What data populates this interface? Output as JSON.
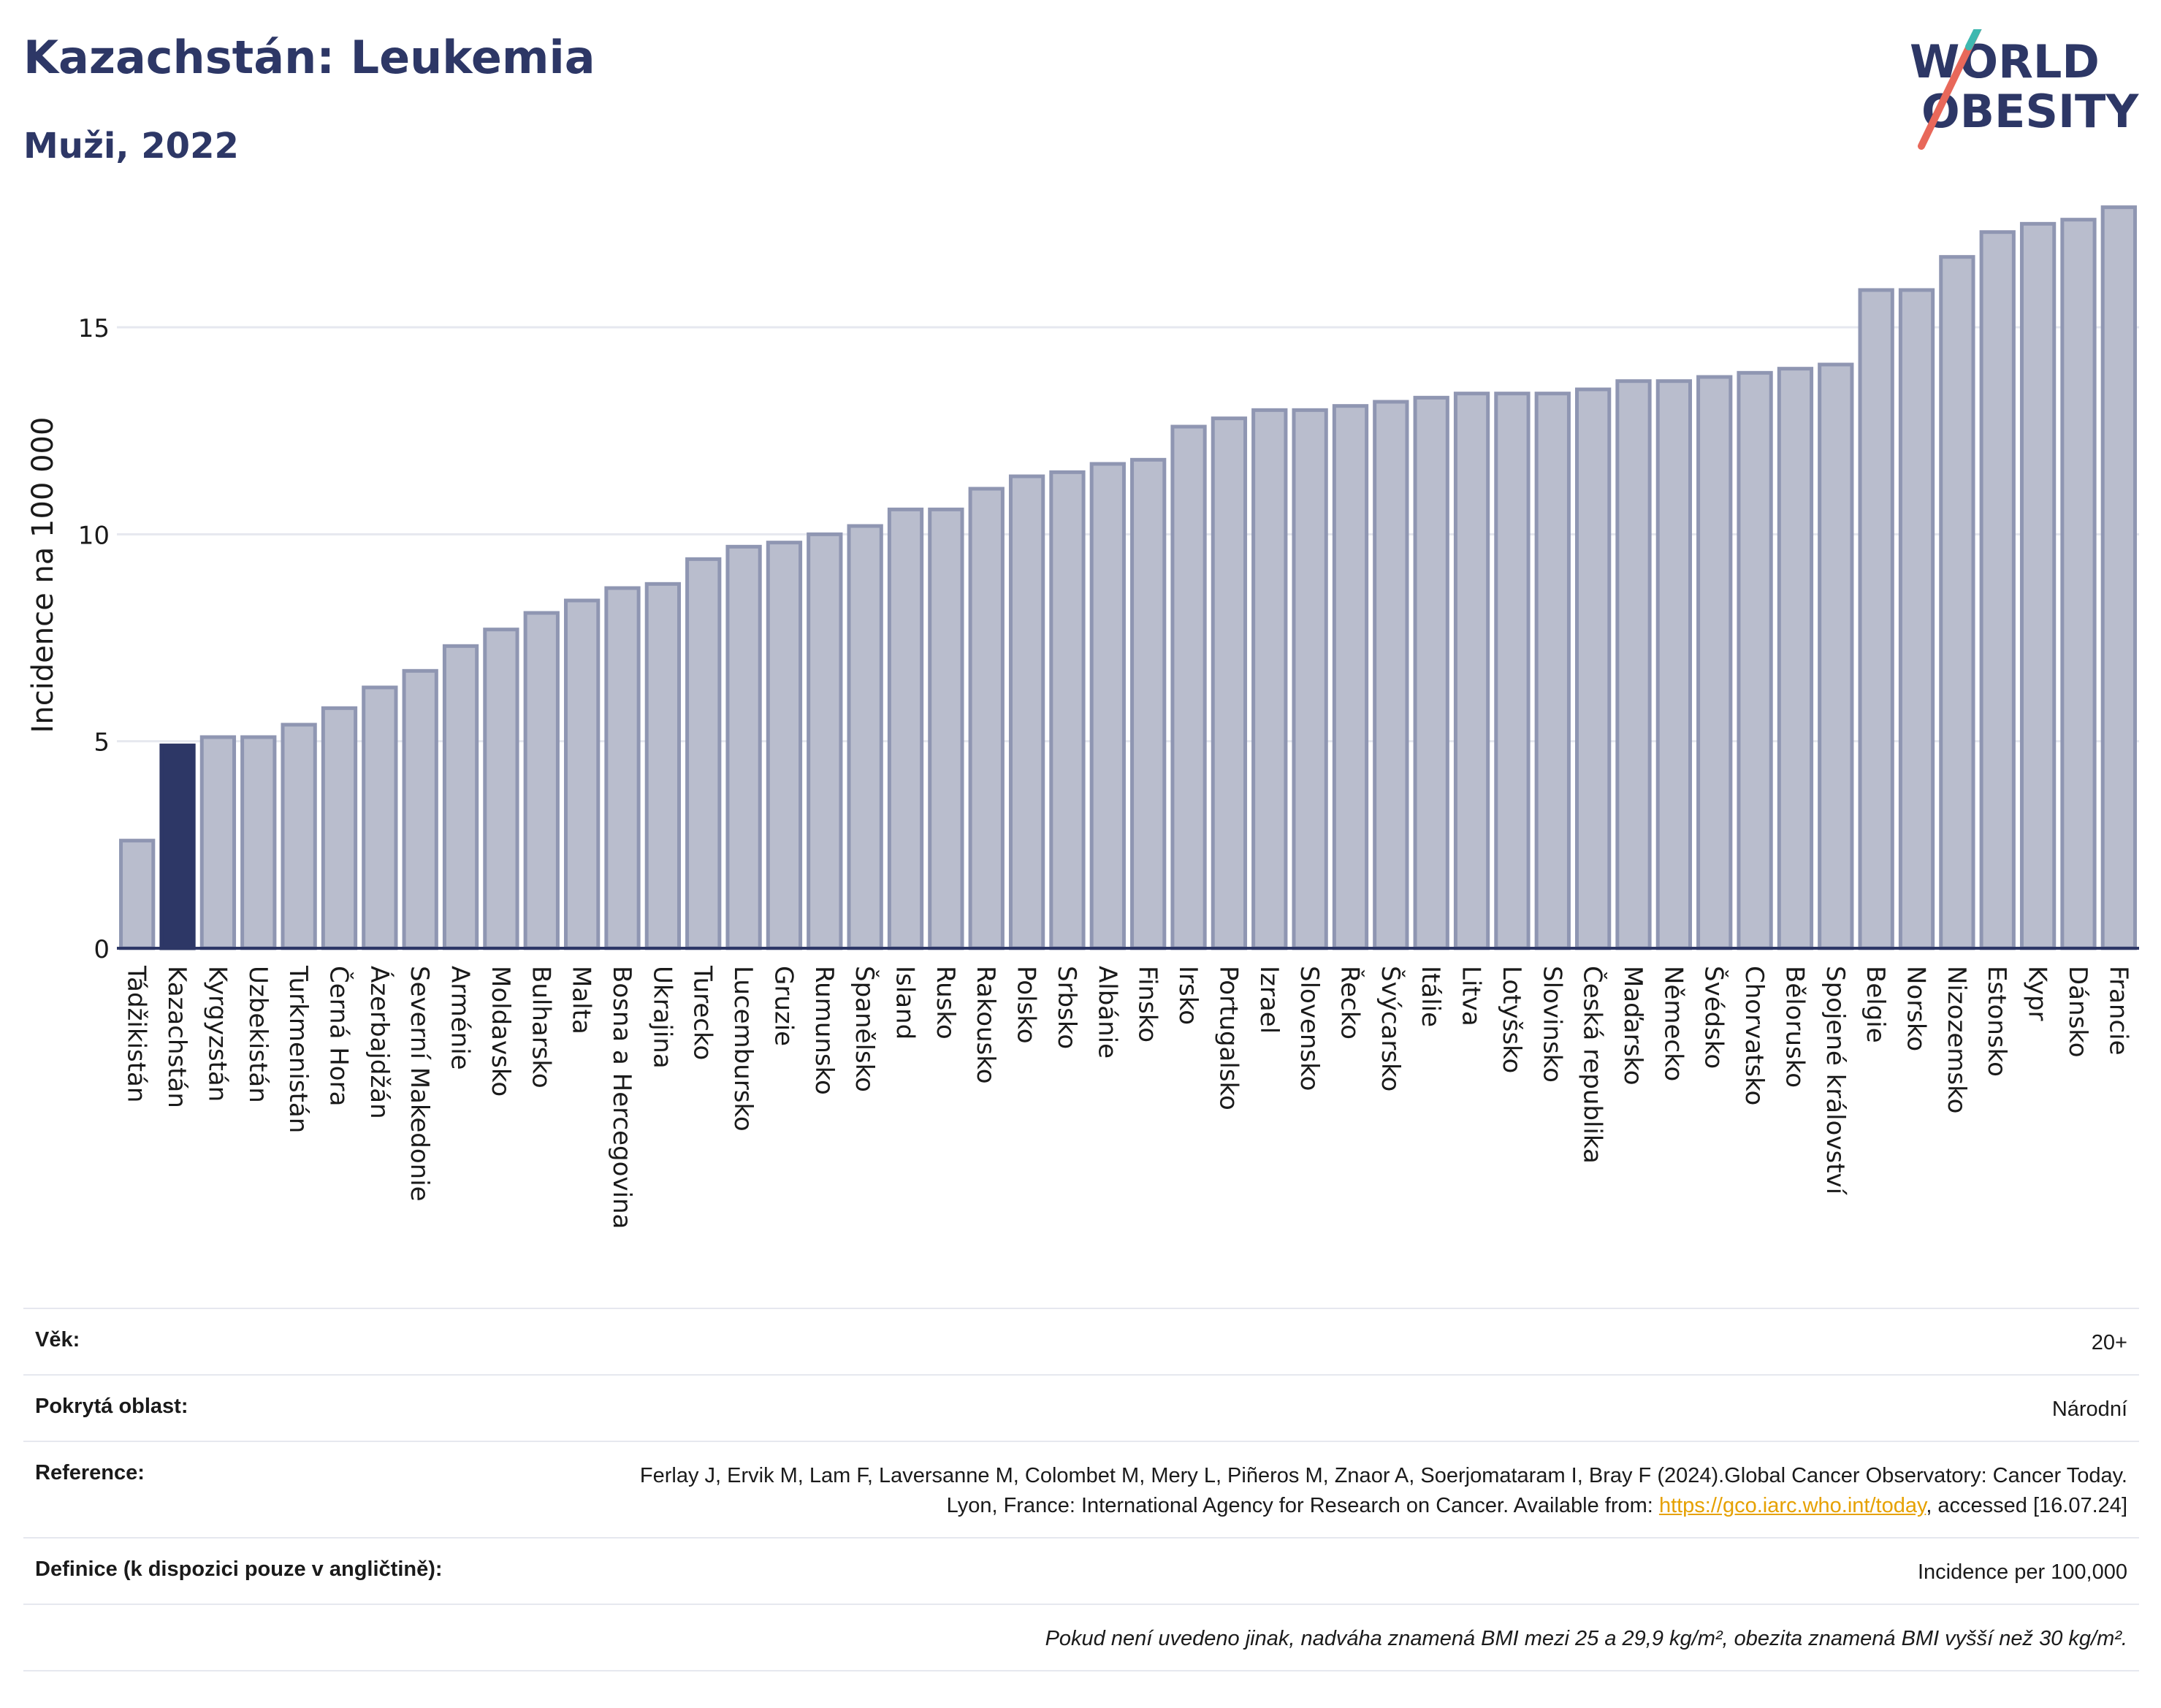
{
  "header": {
    "title": "Kazachstán: Leukemia",
    "subtitle": "Muži, 2022"
  },
  "logo": {
    "line1": "WORLD",
    "line2": "OBESITY"
  },
  "colors": {
    "highlight": "#2d3766",
    "bar_fill": "#b9bdcd",
    "bar_stroke": "#8f96b2",
    "grid": "#e6e8ef",
    "axis": "#2d3766",
    "logo_slash": "#e8685a",
    "logo_slash_top": "#3fb8b0",
    "link": "#e6a100"
  },
  "chart_data": {
    "type": "bar",
    "ylabel": "Incidence na 100 000",
    "xlabel": "",
    "ylim": [
      0,
      18
    ],
    "yticks": [
      0,
      5,
      10,
      15
    ],
    "grid": true,
    "highlight_category": "Kazachstán",
    "categories": [
      "Tádžikistán",
      "Kazachstán",
      "Kyrgyzstán",
      "Uzbekistán",
      "Turkmenistán",
      "Černá Hora",
      "Ázerbajdžán",
      "Severní Makedonie",
      "Arménie",
      "Moldavsko",
      "Bulharsko",
      "Malta",
      "Bosna a Hercegovina",
      "Ukrajina",
      "Turecko",
      "Lucembursko",
      "Gruzie",
      "Rumunsko",
      "Španělsko",
      "Island",
      "Rusko",
      "Rakousko",
      "Polsko",
      "Srbsko",
      "Albánie",
      "Finsko",
      "Irsko",
      "Portugalsko",
      "Izrael",
      "Slovensko",
      "Řecko",
      "Švýcarsko",
      "Itálie",
      "Litva",
      "Lotyšsko",
      "Slovinsko",
      "Česká republika",
      "Maďarsko",
      "Německo",
      "Švédsko",
      "Chorvatsko",
      "Bělorusko",
      "Spojené království",
      "Belgie",
      "Norsko",
      "Nizozemsko",
      "Estonsko",
      "Kypr",
      "Dánsko",
      "Francie"
    ],
    "values": [
      2.6,
      4.9,
      5.1,
      5.1,
      5.4,
      5.8,
      6.3,
      6.7,
      7.3,
      7.7,
      8.1,
      8.4,
      8.7,
      8.8,
      9.4,
      9.7,
      9.8,
      10.0,
      10.2,
      10.6,
      10.6,
      11.1,
      11.4,
      11.5,
      11.7,
      11.8,
      12.6,
      12.8,
      13.0,
      13.0,
      13.1,
      13.2,
      13.3,
      13.4,
      13.4,
      13.4,
      13.5,
      13.7,
      13.7,
      13.8,
      13.9,
      14.0,
      14.1,
      15.9,
      15.9,
      16.7,
      17.3,
      17.5,
      17.6,
      17.9
    ]
  },
  "footer": {
    "age_label": "Věk:",
    "age_value": "20+",
    "area_label": "Pokrytá oblast:",
    "area_value": "Národní",
    "reference_label": "Reference:",
    "reference_text": "Ferlay J, Ervik M, Lam F, Laversanne M, Colombet M, Mery L, Piñeros M, Znaor A, Soerjomataram I, Bray F (2024).Global Cancer Observatory: Cancer Today. Lyon, France: International Agency for Research on Cancer. Available from: ",
    "reference_link": "https://gco.iarc.who.int/today",
    "reference_tail": ", accessed [16.07.24]",
    "definition_label": "Definice (k dispozici pouze v angličtině):",
    "definition_value": "Incidence per 100,000",
    "note": "Pokud není uvedeno jinak, nadváha znamená BMI mezi 25 a 29,9 kg/m², obezita znamená BMI vyšší než 30 kg/m²."
  }
}
